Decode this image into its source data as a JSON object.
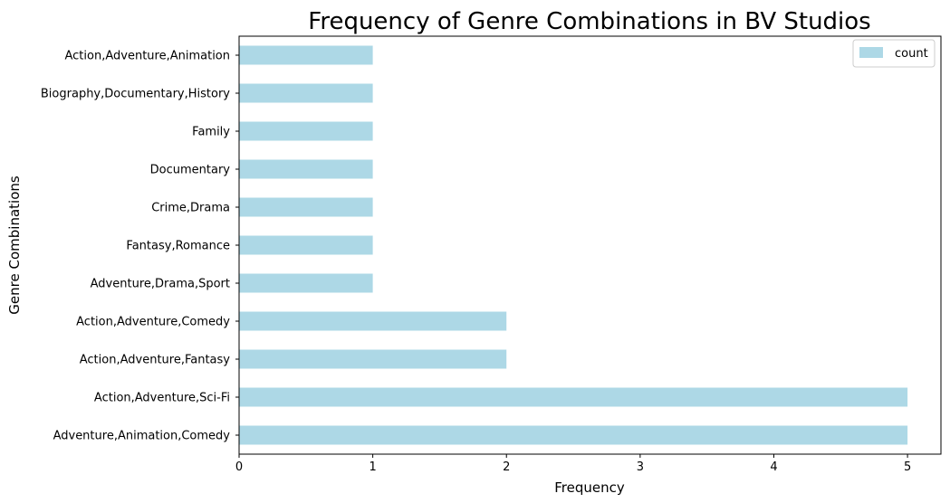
{
  "chart_data": {
    "type": "bar",
    "orientation": "horizontal",
    "title": "Frequency of Genre Combinations in BV Studios",
    "xlabel": "Frequency",
    "ylabel": "Genre Combinations",
    "categories": [
      "Adventure,Animation,Comedy",
      "Action,Adventure,Sci-Fi",
      "Action,Adventure,Fantasy",
      "Action,Adventure,Comedy",
      "Adventure,Drama,Sport",
      "Fantasy,Romance",
      "Crime,Drama",
      "Documentary",
      "Family",
      "Biography,Documentary,History",
      "Action,Adventure,Animation"
    ],
    "series": [
      {
        "name": "count",
        "values": [
          5,
          5,
          2,
          2,
          1,
          1,
          1,
          1,
          1,
          1,
          1
        ],
        "color": "#add8e6"
      }
    ],
    "xlim": [
      0,
      5.25
    ],
    "xticks": [
      "0",
      "1",
      "2",
      "3",
      "4",
      "5"
    ],
    "grid": false,
    "legend_position": "top-right"
  }
}
